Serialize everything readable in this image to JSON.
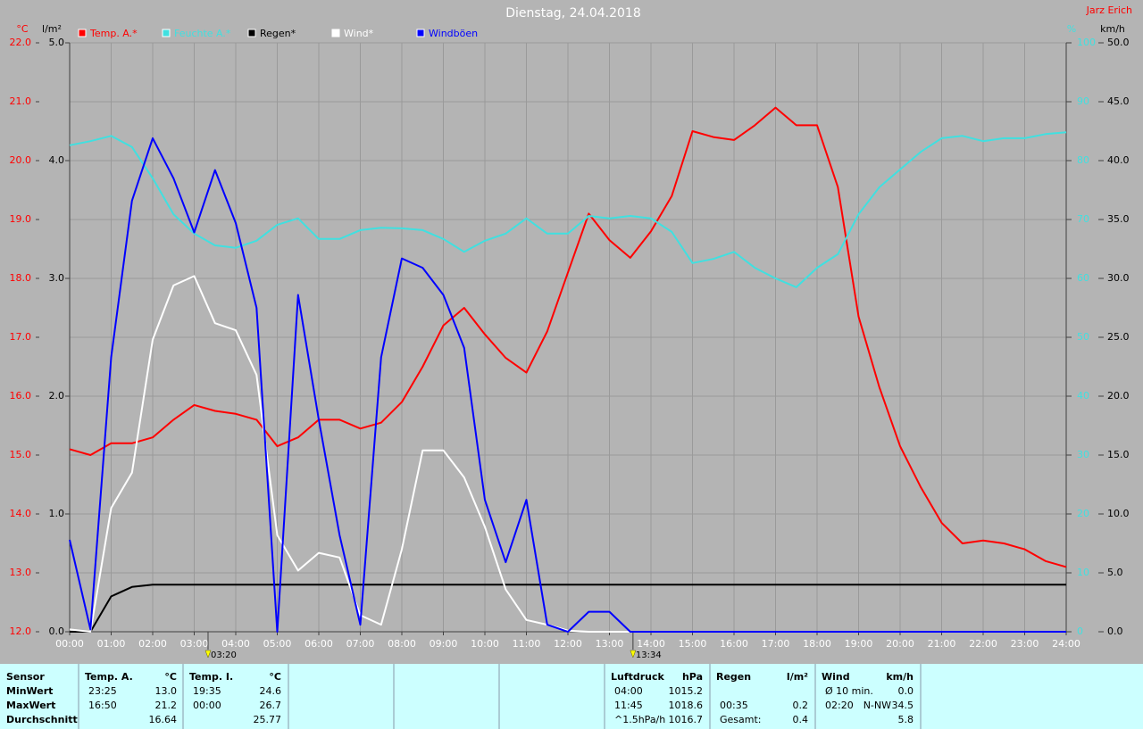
{
  "chart_data": {
    "type": "line",
    "title": "Dienstag, 24.04.2018",
    "author": "Jarz Erich",
    "grid": true,
    "xlim": [
      0,
      24
    ],
    "xticks": [
      {
        "value": 0,
        "label": "00:00"
      },
      {
        "value": 1,
        "label": "01:00"
      },
      {
        "value": 2,
        "label": "02:00"
      },
      {
        "value": 3,
        "label": "03:00"
      },
      {
        "value": 4,
        "label": "04:00"
      },
      {
        "value": 5,
        "label": "05:00"
      },
      {
        "value": 6,
        "label": "06:00"
      },
      {
        "value": 7,
        "label": "07:00"
      },
      {
        "value": 8,
        "label": "08:00"
      },
      {
        "value": 9,
        "label": "09:00"
      },
      {
        "value": 10,
        "label": "10:00"
      },
      {
        "value": 11,
        "label": "11:00"
      },
      {
        "value": 12,
        "label": "12:00"
      },
      {
        "value": 13,
        "label": "13:00"
      },
      {
        "value": 14,
        "label": "14:00"
      },
      {
        "value": 15,
        "label": "15:00"
      },
      {
        "value": 16,
        "label": "16:00"
      },
      {
        "value": 17,
        "label": "17:00"
      },
      {
        "value": 18,
        "label": "18:00"
      },
      {
        "value": 19,
        "label": "19:00"
      },
      {
        "value": 20,
        "label": "20:00"
      },
      {
        "value": 21,
        "label": "21:00"
      },
      {
        "value": 22,
        "label": "22:00"
      },
      {
        "value": 23,
        "label": "23:00"
      },
      {
        "value": 24,
        "label": "24:00"
      }
    ],
    "axes": [
      {
        "name": "°C",
        "color": "#ff0000",
        "lim": [
          12,
          22
        ],
        "ticks": [
          {
            "value": 12,
            "label": "12.0"
          },
          {
            "value": 13,
            "label": "13.0"
          },
          {
            "value": 14,
            "label": "14.0"
          },
          {
            "value": 15,
            "label": "15.0"
          },
          {
            "value": 16,
            "label": "16.0"
          },
          {
            "value": 17,
            "label": "17.0"
          },
          {
            "value": 18,
            "label": "18.0"
          },
          {
            "value": 19,
            "label": "19.0"
          },
          {
            "value": 20,
            "label": "20.0"
          },
          {
            "value": 21,
            "label": "21.0"
          },
          {
            "value": 22,
            "label": "22.0"
          }
        ]
      },
      {
        "name": "l/m²",
        "color": "#000000",
        "lim": [
          0,
          5
        ],
        "ticks": [
          {
            "value": 0,
            "label": "0.0"
          },
          {
            "value": 1,
            "label": "1.0"
          },
          {
            "value": 2,
            "label": "2.0"
          },
          {
            "value": 3,
            "label": "3.0"
          },
          {
            "value": 4,
            "label": "4.0"
          },
          {
            "value": 5,
            "label": "5.0"
          }
        ]
      },
      {
        "name": "%",
        "color": "#40e0e0",
        "lim": [
          0,
          100
        ],
        "ticks": [
          0,
          10,
          20,
          30,
          40,
          50,
          60,
          70,
          80,
          90,
          100
        ]
      },
      {
        "name": "km/h",
        "color": "#000000",
        "lim": [
          0,
          50
        ],
        "ticks": [
          {
            "value": 0,
            "label": "0.0"
          },
          {
            "value": 5,
            "label": "5.0"
          },
          {
            "value": 10,
            "label": "10.0"
          },
          {
            "value": 15,
            "label": "15.0"
          },
          {
            "value": 20,
            "label": "20.0"
          },
          {
            "value": 25,
            "label": "25.0"
          },
          {
            "value": 30,
            "label": "30.0"
          },
          {
            "value": 35,
            "label": "35.0"
          },
          {
            "value": 40,
            "label": "40.0"
          },
          {
            "value": 45,
            "label": "45.0"
          },
          {
            "value": 50,
            "label": "50.0"
          }
        ]
      }
    ],
    "x": [
      0,
      0.5,
      1,
      1.5,
      2,
      2.5,
      3,
      3.5,
      4,
      4.5,
      5,
      5.5,
      6,
      6.5,
      7,
      7.5,
      8,
      8.5,
      9,
      9.5,
      10,
      10.5,
      11,
      11.5,
      12,
      12.5,
      13,
      13.5,
      14,
      14.5,
      15,
      15.5,
      16,
      16.5,
      17,
      17.5,
      18,
      18.5,
      19,
      19.5,
      20,
      20.5,
      21,
      21.5,
      22,
      22.5,
      23,
      23.5,
      24
    ],
    "series": [
      {
        "name": "Temp. A.*",
        "color": "#ff0000",
        "axis": 0,
        "values": [
          15.1,
          15.0,
          15.2,
          15.2,
          15.3,
          15.6,
          15.85,
          15.75,
          15.7,
          15.6,
          15.15,
          15.3,
          15.6,
          15.6,
          15.45,
          15.55,
          15.9,
          16.5,
          17.2,
          17.5,
          17.05,
          16.65,
          16.4,
          17.1,
          18.1,
          19.1,
          18.65,
          18.35,
          18.8,
          19.4,
          20.5,
          20.4,
          20.35,
          20.6,
          20.9,
          20.6,
          20.6,
          19.55,
          17.35,
          16.15,
          15.15,
          14.45,
          13.85,
          13.5,
          13.55,
          13.5,
          13.4,
          13.2,
          13.1
        ]
      },
      {
        "name": "Feuchte A.*",
        "color": "#40e0e0",
        "axis": 2,
        "values": [
          82.6,
          83.3,
          84.2,
          82.3,
          77,
          70.9,
          67.6,
          65.6,
          65.2,
          66.4,
          69.1,
          70.2,
          66.7,
          66.7,
          68.2,
          68.6,
          68.5,
          68.2,
          66.7,
          64.5,
          66.4,
          67.6,
          70.2,
          67.6,
          67.6,
          70.6,
          70.2,
          70.6,
          70.2,
          67.9,
          62.6,
          63.3,
          64.5,
          61.8,
          60,
          58.5,
          61.8,
          64.1,
          70.9,
          75.5,
          78.5,
          81.5,
          83.8,
          84.2,
          83.3,
          83.8,
          83.8,
          84.5,
          84.8
        ]
      },
      {
        "name": "Regen*",
        "color": "#000000",
        "axis": 1,
        "values": [
          0,
          0,
          0.3,
          0.38,
          0.4,
          0.4,
          0.4,
          0.4,
          0.4,
          0.4,
          0.4,
          0.4,
          0.4,
          0.4,
          0.4,
          0.4,
          0.4,
          0.4,
          0.4,
          0.4,
          0.4,
          0.4,
          0.4,
          0.4,
          0.4,
          0.4,
          0.4,
          0.4,
          0.4,
          0.4,
          0.4,
          0.4,
          0.4,
          0.4,
          0.4,
          0.4,
          0.4,
          0.4,
          0.4,
          0.4,
          0.4,
          0.4,
          0.4,
          0.4,
          0.4,
          0.4,
          0.4,
          0.4,
          0.4
        ]
      },
      {
        "name": "Wind*",
        "color": "#ffffff",
        "axis": 3,
        "values": [
          0.2,
          0,
          10.5,
          13.5,
          24.8,
          29.4,
          30.2,
          26.2,
          25.6,
          21.8,
          8.2,
          5.2,
          6.7,
          6.3,
          1.4,
          0.6,
          7,
          15.4,
          15.4,
          13.1,
          8.9,
          3.6,
          1,
          0.6,
          0.1,
          0,
          0,
          0,
          0,
          0,
          0,
          0,
          0,
          0,
          0,
          0,
          0,
          0,
          0,
          0,
          0,
          0,
          0,
          0,
          0,
          0,
          0,
          0,
          0
        ]
      },
      {
        "name": "Windböen",
        "color": "#0000ff",
        "axis": 3,
        "values": [
          7.8,
          0.2,
          23.3,
          36.6,
          41.9,
          38.5,
          33.9,
          39.2,
          34.7,
          27.5,
          0,
          28.6,
          18,
          8.2,
          0.6,
          23.3,
          31.7,
          30.9,
          28.6,
          24.1,
          11.2,
          5.9,
          11.2,
          0.6,
          0,
          1.7,
          1.7,
          0,
          0,
          0,
          0,
          0,
          0,
          0,
          0,
          0,
          0,
          0,
          0,
          0,
          0,
          0,
          0,
          0,
          0,
          0,
          0,
          0,
          0
        ]
      }
    ],
    "events": [
      {
        "value": 3.333,
        "label": "03:20"
      },
      {
        "value": 13.567,
        "label": "13:34"
      }
    ]
  },
  "summary_table": {
    "row_labels": [
      "Sensor",
      "MinWert",
      "MaxWert",
      "Durchschnitt"
    ],
    "columns": [
      {
        "title": "Temp. A.",
        "unit": "°C",
        "rows": [
          {
            "time": "23:25",
            "value": "13.0"
          },
          {
            "time": "16:50",
            "value": "21.2"
          },
          {
            "value": "16.64"
          }
        ]
      },
      {
        "title": "Temp. I.",
        "unit": "°C",
        "rows": [
          {
            "time": "19:35",
            "value": "24.6"
          },
          {
            "time": "00:00",
            "value": "26.7"
          },
          {
            "value": "25.77"
          }
        ]
      },
      {
        "title": "Luftdruck",
        "unit": "hPa",
        "rows": [
          {
            "time": "04:00",
            "value": "1015.2"
          },
          {
            "time": "11:45",
            "value": "1018.6"
          },
          {
            "time": "^1.5hPa/h",
            "value": "1016.7"
          }
        ]
      },
      {
        "title": "Regen",
        "unit": "l/m²",
        "rows": [
          {},
          {
            "time": "00:35",
            "value": "0.2"
          },
          {
            "time": "Gesamt:",
            "value": "0.4"
          }
        ]
      },
      {
        "title": "Wind",
        "unit": "km/h",
        "rows": [
          {
            "time": "Ø 10 min.",
            "value": "0.0"
          },
          {
            "time": "02:20",
            "dir": "N-NW",
            "value": "34.5"
          },
          {
            "value": "5.8"
          }
        ]
      }
    ]
  }
}
